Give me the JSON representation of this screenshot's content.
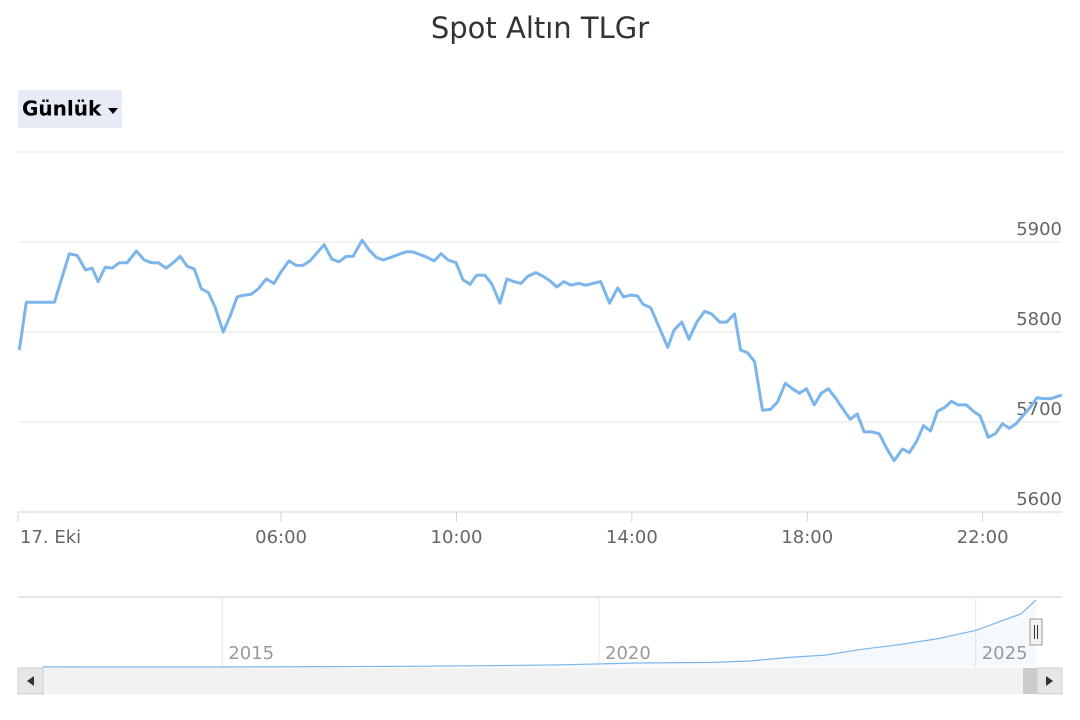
{
  "controls": {
    "range": "Günlük"
  },
  "chart_data": [
    {
      "type": "line",
      "title": "Spot Altın TLGr",
      "color": "#7cb5ec",
      "grid": true,
      "xlim": [
        0,
        23.81
      ],
      "xticks": [
        {
          "value": 0,
          "label": "17. Eki"
        },
        {
          "value": 6,
          "label": "06:00"
        },
        {
          "value": 10,
          "label": "10:00"
        },
        {
          "value": 14,
          "label": "14:00"
        },
        {
          "value": 18,
          "label": "18:00"
        },
        {
          "value": 22,
          "label": "22:00"
        }
      ],
      "ylim": [
        5600,
        6000
      ],
      "yticks": [
        5600,
        5700,
        5800,
        5900
      ],
      "x": [
        0.03,
        0.19,
        0.83,
        1.17,
        1.35,
        1.54,
        1.69,
        1.83,
        1.99,
        2.15,
        2.31,
        2.49,
        2.7,
        2.88,
        3.04,
        3.2,
        3.38,
        3.54,
        3.7,
        3.86,
        4.02,
        4.18,
        4.34,
        4.5,
        4.68,
        4.84,
        5.0,
        5.16,
        5.32,
        5.48,
        5.66,
        5.84,
        6.0,
        6.18,
        6.34,
        6.5,
        6.66,
        6.82,
        6.98,
        7.16,
        7.32,
        7.48,
        7.64,
        7.85,
        8.01,
        8.17,
        8.33,
        8.51,
        8.67,
        8.85,
        9.01,
        9.17,
        9.33,
        9.49,
        9.65,
        9.81,
        9.99,
        10.15,
        10.31,
        10.46,
        10.65,
        10.81,
        10.99,
        11.15,
        11.31,
        11.47,
        11.63,
        11.81,
        11.97,
        12.13,
        12.29,
        12.45,
        12.61,
        12.79,
        12.95,
        13.11,
        13.29,
        13.49,
        13.68,
        13.81,
        13.97,
        14.13,
        14.25,
        14.43,
        14.59,
        14.82,
        14.96,
        15.14,
        15.3,
        15.48,
        15.66,
        15.82,
        16.0,
        16.16,
        16.34,
        16.48,
        16.64,
        16.8,
        16.98,
        17.16,
        17.32,
        17.5,
        17.66,
        17.82,
        17.98,
        18.16,
        18.32,
        18.48,
        18.64,
        18.82,
        18.98,
        19.14,
        19.3,
        19.48,
        19.64,
        19.82,
        19.98,
        20.17,
        20.33,
        20.49,
        20.65,
        20.81,
        20.97,
        21.13,
        21.29,
        21.44,
        21.63,
        21.79,
        21.94,
        22.13,
        22.29,
        22.45,
        22.61,
        22.76,
        22.92,
        23.08,
        23.24,
        23.4,
        23.56,
        23.81
      ],
      "values": [
        5780,
        5833,
        5833,
        5887,
        5885,
        5869,
        5871,
        5856,
        5872,
        5871,
        5877,
        5877,
        5890,
        5880,
        5877,
        5877,
        5871,
        5877,
        5884,
        5873,
        5870,
        5848,
        5844,
        5827,
        5800,
        5818,
        5839,
        5841,
        5842,
        5848,
        5859,
        5854,
        5867,
        5879,
        5874,
        5874,
        5879,
        5888,
        5897,
        5881,
        5878,
        5884,
        5884,
        5902,
        5891,
        5883,
        5880,
        5883,
        5886,
        5889,
        5889,
        5886,
        5883,
        5879,
        5887,
        5880,
        5877,
        5858,
        5853,
        5863,
        5863,
        5853,
        5832,
        5859,
        5856,
        5854,
        5862,
        5866,
        5862,
        5857,
        5850,
        5856,
        5852,
        5854,
        5852,
        5854,
        5856,
        5832,
        5849,
        5839,
        5841,
        5840,
        5831,
        5827,
        5809,
        5783,
        5802,
        5811,
        5792,
        5811,
        5823,
        5820,
        5811,
        5811,
        5820,
        5780,
        5777,
        5767,
        5713,
        5714,
        5722,
        5743,
        5737,
        5732,
        5737,
        5719,
        5732,
        5737,
        5727,
        5714,
        5703,
        5709,
        5689,
        5689,
        5687,
        5670,
        5657,
        5670,
        5666,
        5678,
        5696,
        5690,
        5712,
        5716,
        5723,
        5719,
        5719,
        5712,
        5707,
        5683,
        5687,
        5698,
        5693,
        5698,
        5707,
        5716,
        5727,
        5726,
        5726,
        5730
      ]
    },
    {
      "type": "area",
      "color": "#7cb5ec",
      "xlim": [
        2012.62,
        2025.8
      ],
      "xticks": [
        2015,
        2020,
        2025
      ],
      "x": [
        2012.62,
        2013.5,
        2014.5,
        2015.5,
        2016.5,
        2017.5,
        2018.5,
        2019.5,
        2020.5,
        2021.5,
        2022.0,
        2022.5,
        2023.0,
        2023.5,
        2024.0,
        2024.5,
        2025.0,
        2025.3,
        2025.6,
        2025.8
      ],
      "values": [
        95,
        90,
        90,
        100,
        125,
        150,
        200,
        280,
        430,
        480,
        600,
        900,
        1100,
        1600,
        2000,
        2500,
        3200,
        3900,
        4600,
        5780
      ]
    }
  ]
}
